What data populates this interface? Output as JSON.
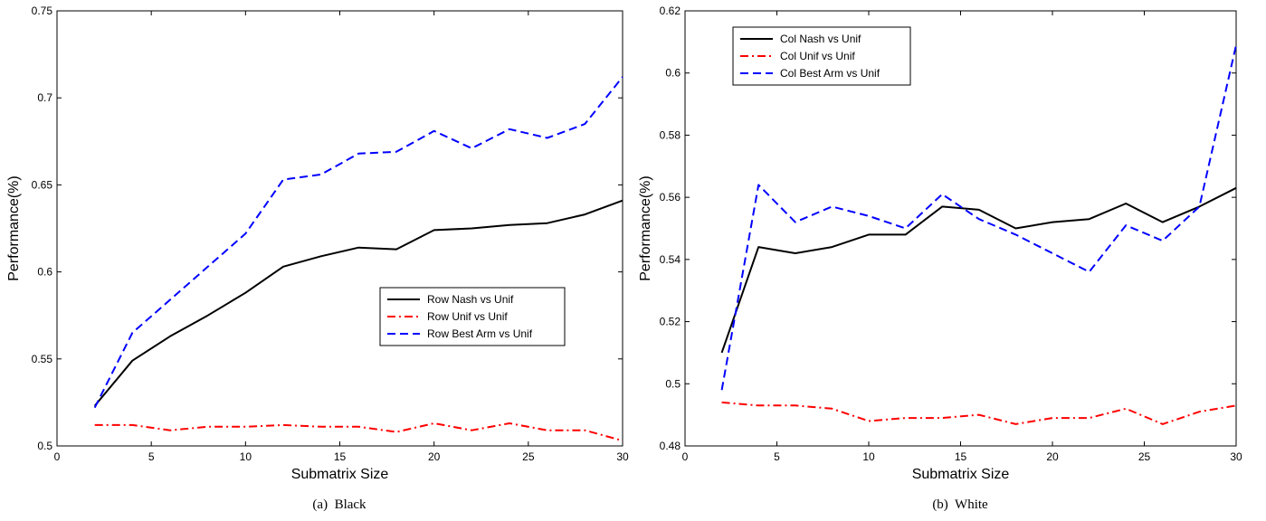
{
  "chart_data": [
    {
      "type": "line",
      "caption": "(a)  Black",
      "xlabel": "Submatrix Size",
      "ylabel": "Performance(%)",
      "xlim": [
        0,
        30
      ],
      "ylim": [
        0.5,
        0.75
      ],
      "xticks": [
        "0",
        "5",
        "10",
        "15",
        "20",
        "25",
        "30"
      ],
      "yticks": [
        "0.5",
        "0.55",
        "0.6",
        "0.65",
        "0.7",
        "0.75"
      ],
      "legend_position": "center-right",
      "grid": false,
      "x": [
        2,
        4,
        6,
        8,
        10,
        12,
        14,
        16,
        18,
        20,
        22,
        24,
        26,
        28,
        30
      ],
      "series": [
        {
          "name": "Row Nash vs Unif",
          "color": "#000000",
          "style": "solid",
          "values": [
            0.523,
            0.549,
            0.563,
            0.575,
            0.588,
            0.603,
            0.609,
            0.614,
            0.613,
            0.624,
            0.625,
            0.627,
            0.628,
            0.633,
            0.641
          ]
        },
        {
          "name": "Row Unif vs Unif",
          "color": "#ff0000",
          "style": "dashdot",
          "values": [
            0.512,
            0.512,
            0.509,
            0.511,
            0.511,
            0.512,
            0.511,
            0.511,
            0.508,
            0.513,
            0.509,
            0.513,
            0.509,
            0.509,
            0.503
          ]
        },
        {
          "name": "Row Best Arm vs Unif",
          "color": "#0000ff",
          "style": "dashed",
          "values": [
            0.522,
            0.565,
            0.584,
            0.603,
            0.622,
            0.653,
            0.656,
            0.668,
            0.669,
            0.681,
            0.671,
            0.682,
            0.677,
            0.685,
            0.712
          ]
        }
      ]
    },
    {
      "type": "line",
      "caption": "(b)  White",
      "xlabel": "Submatrix Size",
      "ylabel": "Performance(%)",
      "xlim": [
        0,
        30
      ],
      "ylim": [
        0.48,
        0.62
      ],
      "xticks": [
        "0",
        "5",
        "10",
        "15",
        "20",
        "25",
        "30"
      ],
      "yticks": [
        "0.48",
        "0.5",
        "0.52",
        "0.54",
        "0.56",
        "0.58",
        "0.6",
        "0.62"
      ],
      "legend_position": "top-left",
      "grid": false,
      "x": [
        2,
        4,
        6,
        8,
        10,
        12,
        14,
        16,
        18,
        20,
        22,
        24,
        26,
        28,
        30
      ],
      "series": [
        {
          "name": "Col Nash vs Unif",
          "color": "#000000",
          "style": "solid",
          "values": [
            0.51,
            0.544,
            0.542,
            0.544,
            0.548,
            0.548,
            0.557,
            0.556,
            0.55,
            0.552,
            0.553,
            0.558,
            0.552,
            0.557,
            0.563
          ]
        },
        {
          "name": "Col Unif vs Unif",
          "color": "#ff0000",
          "style": "dashdot",
          "values": [
            0.494,
            0.493,
            0.493,
            0.492,
            0.488,
            0.489,
            0.489,
            0.49,
            0.487,
            0.489,
            0.489,
            0.492,
            0.487,
            0.491,
            0.493
          ]
        },
        {
          "name": "Col Best Arm vs Unif",
          "color": "#0000ff",
          "style": "dashed",
          "values": [
            0.498,
            0.564,
            0.552,
            0.557,
            0.554,
            0.55,
            0.561,
            0.553,
            0.548,
            0.542,
            0.536,
            0.551,
            0.546,
            0.557,
            0.609
          ]
        }
      ]
    }
  ]
}
